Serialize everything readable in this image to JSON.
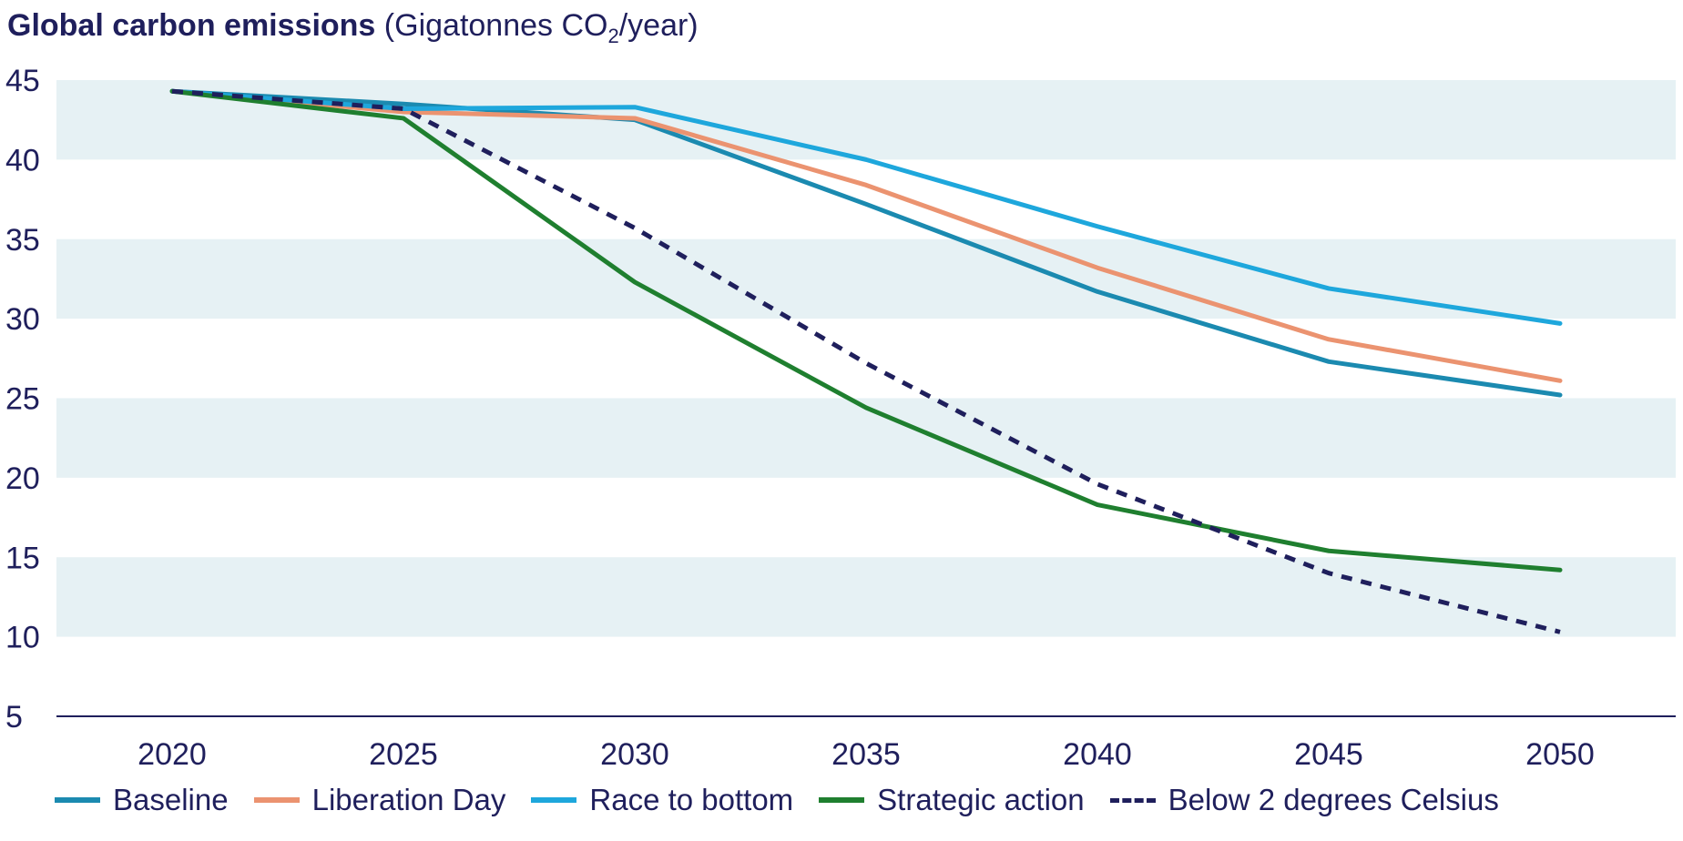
{
  "title_bold": "Global carbon emissions",
  "title_rest_pre": "(Gigatonnes CO",
  "title_sub": "2",
  "title_rest_post": "/year)",
  "chart_data": {
    "type": "line",
    "title": "Global carbon emissions (Gigatonnes CO2/year)",
    "xlabel": "",
    "ylabel": "",
    "x": [
      2020,
      2025,
      2030,
      2035,
      2040,
      2045,
      2050
    ],
    "xlim": [
      2017.5,
      2052.5
    ],
    "ylim": [
      5,
      45
    ],
    "yticks": [
      5,
      10,
      15,
      20,
      25,
      30,
      35,
      40,
      45
    ],
    "band_color": "#e6f1f4",
    "axis_color": "#1f1f5c",
    "legend_position": "bottom",
    "series": [
      {
        "name": "Baseline",
        "color": "#1b8ab0",
        "dashed": false,
        "values": [
          44.3,
          43.5,
          42.5,
          37.2,
          31.7,
          27.3,
          25.2
        ]
      },
      {
        "name": "Liberation Day",
        "color": "#eb9370",
        "dashed": false,
        "values": [
          44.3,
          43.0,
          42.6,
          38.4,
          33.2,
          28.7,
          26.1
        ]
      },
      {
        "name": "Race to bottom",
        "color": "#1ea7dc",
        "dashed": false,
        "values": [
          44.3,
          43.2,
          43.3,
          40.0,
          35.8,
          31.9,
          29.7
        ]
      },
      {
        "name": "Strategic action",
        "color": "#1f7f2f",
        "dashed": false,
        "values": [
          44.3,
          42.6,
          32.3,
          24.4,
          18.3,
          15.4,
          14.2
        ]
      },
      {
        "name": "Below 2 degrees Celsius",
        "color": "#1f1f5c",
        "dashed": true,
        "values": [
          44.3,
          43.2,
          35.7,
          27.2,
          19.6,
          14.0,
          10.3
        ]
      }
    ]
  }
}
